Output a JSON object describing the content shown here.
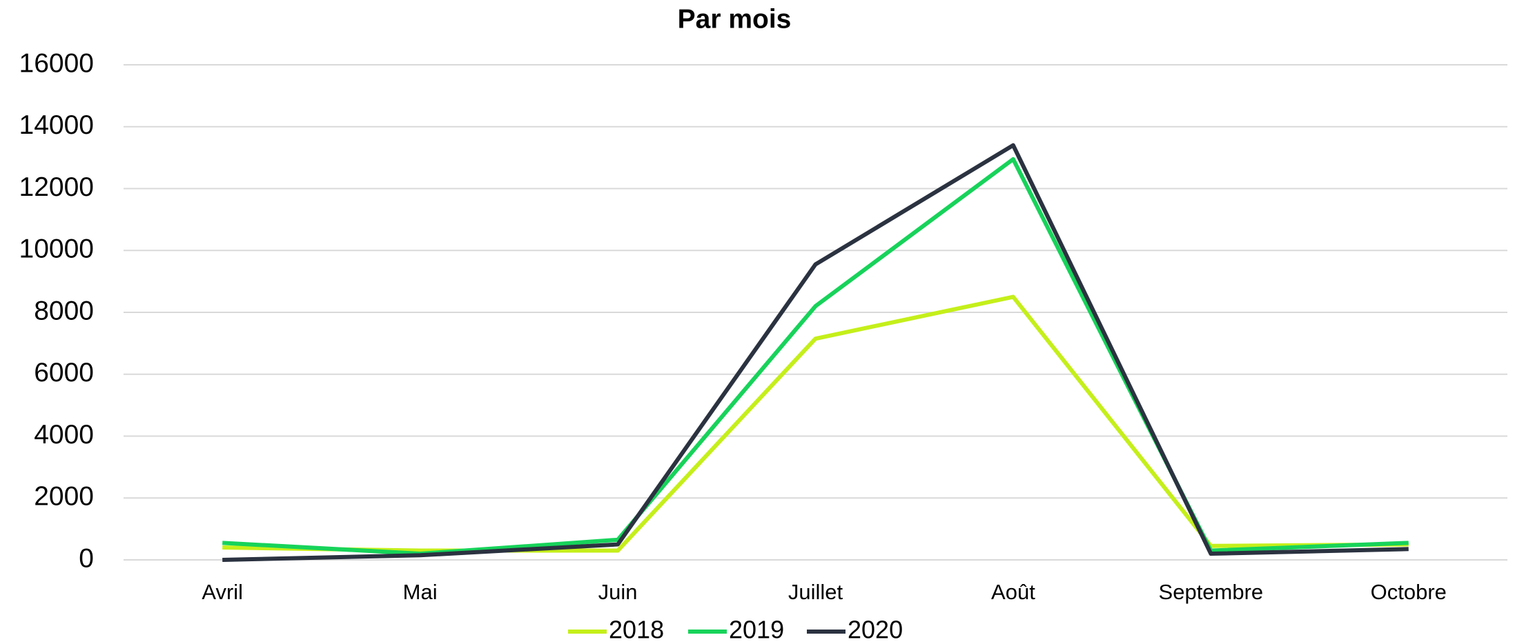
{
  "chart_data": {
    "type": "line",
    "title": "Par mois",
    "categories": [
      "Avril",
      "Mai",
      "Juin",
      "Juillet",
      "Août",
      "Septembre",
      "Octobre"
    ],
    "series": [
      {
        "name": "2018",
        "color": "#c5ef1a",
        "values": [
          400,
          300,
          300,
          7150,
          8500,
          450,
          500
        ]
      },
      {
        "name": "2019",
        "color": "#17d35a",
        "values": [
          550,
          200,
          650,
          8200,
          12950,
          300,
          550
        ]
      },
      {
        "name": "2020",
        "color": "#2b3240",
        "values": [
          0,
          150,
          500,
          9550,
          13400,
          200,
          350
        ]
      }
    ],
    "ylim": [
      0,
      16000
    ],
    "yticks": [
      0,
      2000,
      4000,
      6000,
      8000,
      10000,
      12000,
      14000,
      16000
    ],
    "grid": true,
    "legend": "bottom"
  }
}
